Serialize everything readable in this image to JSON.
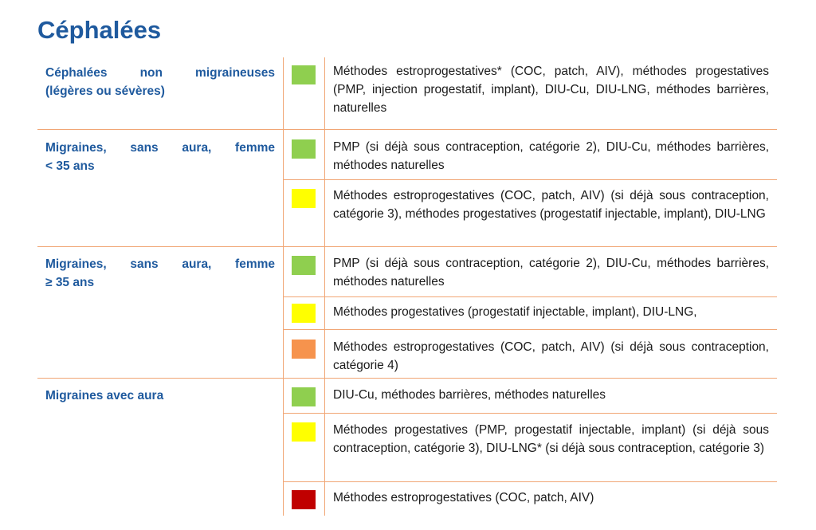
{
  "page": {
    "title": "Céphalées"
  },
  "colors": {
    "title": "#1f5a9e",
    "labels": "#1f5a9e",
    "rules": "#f1a675",
    "green": "#8fcf4f",
    "yellow": "#ffff00",
    "orange": "#f6934d",
    "red": "#c00000"
  },
  "table": {
    "groups": [
      {
        "label_line1": "Céphalées non migraineuses",
        "label_line2": "(légères ou sévères)",
        "entries": [
          {
            "color": "green",
            "text": "Méthodes estroprogestatives* (COC, patch, AIV), méthodes progesta­tives (PMP, injection progestatif, implant), DIU-Cu, DIU-LNG, méthodes barrières, naturelles"
          }
        ]
      },
      {
        "label_line1": "Migraines, sans aura, femme",
        "label_line2": "< 35 ans",
        "entries": [
          {
            "color": "green",
            "text": "PMP (si déjà sous contraception, catégorie 2), DIU-Cu, méthodes bar­rières, méthodes naturelles"
          },
          {
            "color": "yellow",
            "text": "Méthodes estroprogestatives (COC, patch, AIV) (si déjà sous contracep­tion, catégorie 3), méthodes progestatives (progestatif injectable, im­plant), DIU-LNG"
          }
        ]
      },
      {
        "label_line1": "Migraines, sans aura, femme",
        "label_line2": "≥ 35 ans",
        "entries": [
          {
            "color": "green",
            "text": "PMP (si déjà sous contraception, catégorie 2), DIU-Cu, méthodes bar­rières, méthodes naturelles"
          },
          {
            "color": "yellow",
            "text": "Méthodes progestatives (progestatif injectable, implant), DIU-LNG,"
          },
          {
            "color": "orange",
            "text": "Méthodes estroprogestatives (COC, patch, AIV) (si déjà sous contracep­tion, catégorie 4)"
          }
        ]
      },
      {
        "label_line1": "Migraines avec aura",
        "label_line2": "",
        "entries": [
          {
            "color": "green",
            "text": "DIU-Cu, méthodes barrières, méthodes naturelles"
          },
          {
            "color": "yellow",
            "text": "Méthodes progestatives (PMP, progestatif injectable, implant) (si déjà sous contraception, catégorie 3), DIU-LNG* (si déjà sous contraception, catégorie 3)"
          },
          {
            "color": "red",
            "text": "Méthodes estroprogestatives (COC, patch, AIV)"
          }
        ]
      }
    ]
  }
}
